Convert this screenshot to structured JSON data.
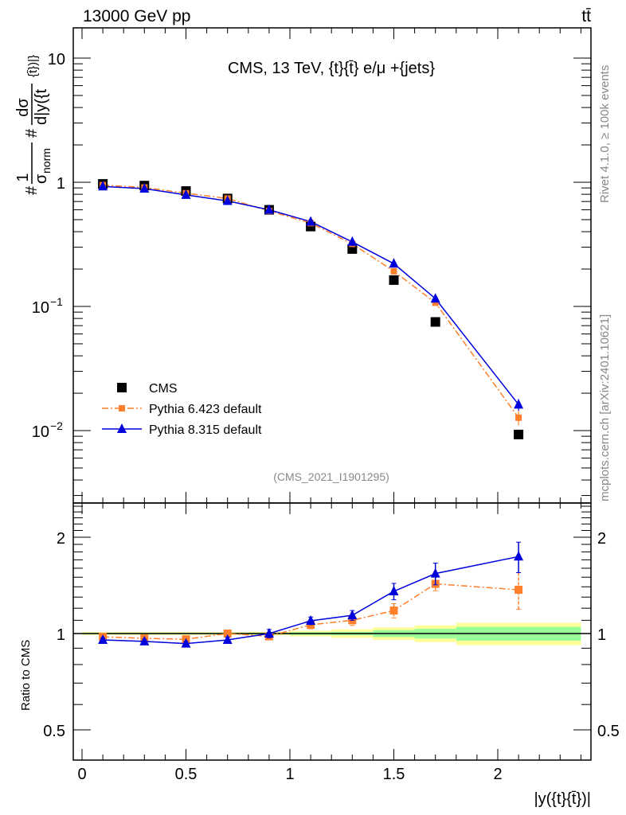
{
  "header": {
    "left": "13000 GeV pp",
    "right": "tt̄"
  },
  "side_labels": {
    "rivet": "Rivet 4.1.0, ≥ 100k events",
    "mcplots": "mcplots.cern.ch [arXiv:2401.10621]"
  },
  "chart_data": {
    "type": "line",
    "title": "CMS, 13 TeV, {t}{t̄} e/μ +{jets}",
    "analysis_id": "(CMS_2021_I1901295)",
    "xlabel": "|y({t}{t̄})|",
    "ylabel": {
      "hash1": "#",
      "num1": "1",
      "den1": "σ",
      "den1_sub": "norm",
      "hash2": "#",
      "num2": "dσ",
      "den2": "d|y({t",
      "den2_sup": "{t̄})|}"
    },
    "ratio_ylabel": "Ratio to CMS",
    "xlim": [
      -0.04,
      2.45
    ],
    "ylim": [
      0.0026,
      17.5
    ],
    "yscale": "log",
    "ratio_ylim": [
      0.4,
      2.56
    ],
    "ratio_yscale": "log",
    "x_ticks": [
      "0",
      "0.5",
      "1",
      "1.5",
      "2"
    ],
    "x_tick_values": [
      0,
      0.5,
      1,
      1.5,
      2
    ],
    "y_ticks": [
      {
        "base": "10",
        "exp": "",
        "value": 10
      },
      {
        "base": "1",
        "exp": "",
        "value": 1
      },
      {
        "base": "10",
        "exp": "−1",
        "value": 0.1
      },
      {
        "base": "10",
        "exp": "−2",
        "value": 0.01
      }
    ],
    "ratio_ticks": [
      {
        "label": "2",
        "value": 2
      },
      {
        "label": "1",
        "value": 1
      },
      {
        "label": "0.5",
        "value": 0.5
      }
    ],
    "legend_position": "bottom-left",
    "x": [
      0.1,
      0.3,
      0.5,
      0.7,
      0.9,
      1.1,
      1.3,
      1.5,
      1.7,
      2.1
    ],
    "bin_edges": [
      0,
      0.2,
      0.4,
      0.6,
      0.8,
      1.0,
      1.2,
      1.4,
      1.6,
      1.8,
      2.4
    ],
    "series": [
      {
        "name": "CMS",
        "color": "#000000",
        "marker": "square",
        "values": [
          0.97,
          0.94,
          0.85,
          0.74,
          0.6,
          0.44,
          0.29,
          0.163,
          0.075,
          0.0093
        ]
      },
      {
        "name": "Pythia 6.423 default",
        "color": "#ff7f2a",
        "marker": "square",
        "line": "dashdot",
        "values": [
          0.948,
          0.908,
          0.816,
          0.74,
          0.588,
          0.469,
          0.319,
          0.192,
          0.107,
          0.0127
        ],
        "ratio": [
          0.977,
          0.966,
          0.96,
          1.0,
          0.98,
          1.065,
          1.1,
          1.18,
          1.43,
          1.37
        ],
        "ratio_err": [
          0.015,
          0.015,
          0.015,
          0.02,
          0.02,
          0.03,
          0.04,
          0.06,
          0.07,
          0.18
        ]
      },
      {
        "name": "Pythia 8.315 default",
        "color": "#0000dd",
        "marker": "triangle",
        "line": "solid",
        "values": [
          0.926,
          0.888,
          0.791,
          0.707,
          0.6,
          0.482,
          0.331,
          0.221,
          0.1155,
          0.0162
        ],
        "ratio": [
          0.955,
          0.945,
          0.93,
          0.955,
          1.0,
          1.096,
          1.14,
          1.355,
          1.54,
          1.74
        ],
        "ratio_err": [
          0.015,
          0.015,
          0.015,
          0.02,
          0.03,
          0.03,
          0.04,
          0.08,
          0.12,
          0.19
        ]
      }
    ],
    "ratio_band": {
      "inner": [
        0.005,
        0.005,
        0.005,
        0.005,
        0.006,
        0.01,
        0.012,
        0.025,
        0.035,
        0.05
      ],
      "outer": [
        0.01,
        0.01,
        0.01,
        0.01,
        0.012,
        0.02,
        0.03,
        0.045,
        0.06,
        0.08
      ],
      "inner_color": "#99ff99",
      "outer_color": "#ffff99"
    }
  }
}
